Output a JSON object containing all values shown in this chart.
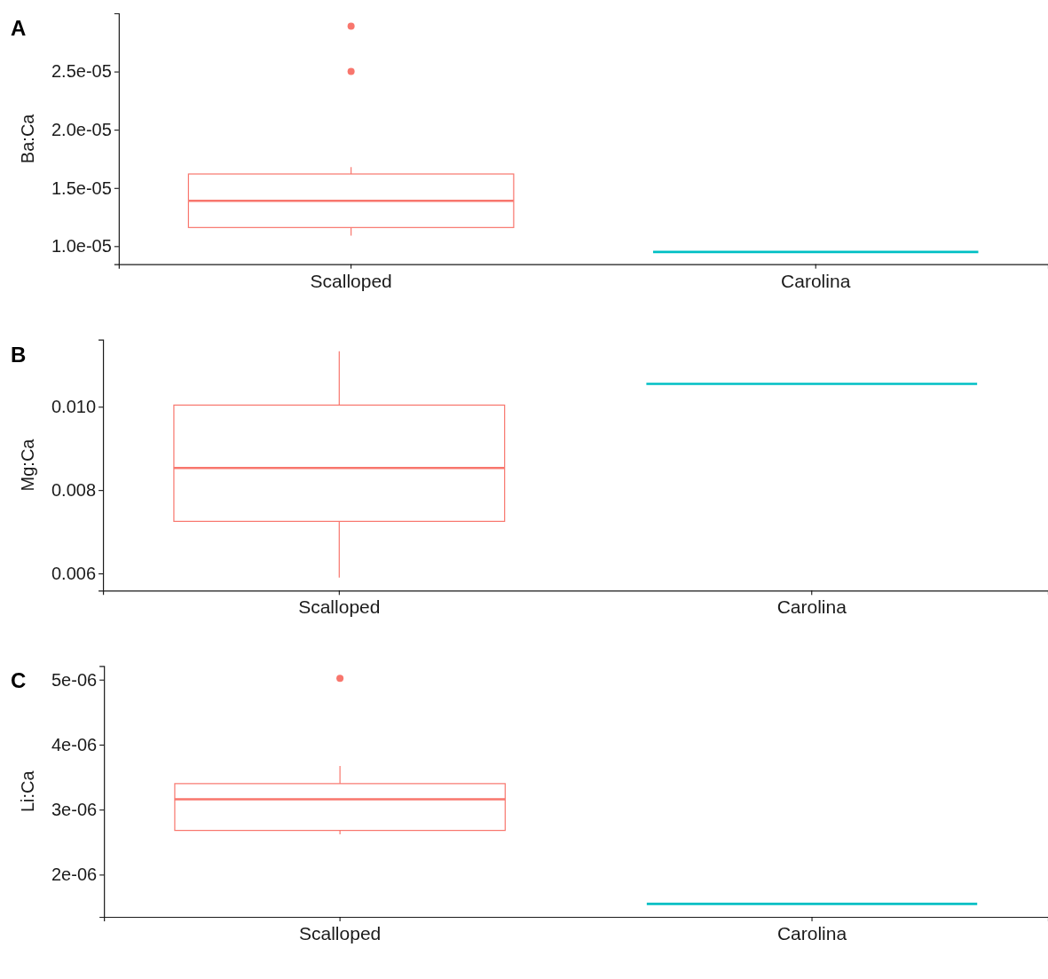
{
  "chart_data": [
    {
      "type": "box",
      "title": "A",
      "ylabel": "Ba:Ca",
      "categories": [
        "Scalloped",
        "Carolina"
      ],
      "colors": [
        "#f8766d",
        "#00bfc4"
      ],
      "boxes": [
        {
          "low": 1.09e-05,
          "q1": 1.16e-05,
          "median": 1.39e-05,
          "q3": 1.62e-05,
          "high": 1.68e-05,
          "outliers": [
            2.89e-05,
            2.5e-05
          ]
        },
        {
          "low": 9.5e-06,
          "q1": 9.5e-06,
          "median": 9.5e-06,
          "q3": 9.5e-06,
          "high": 9.5e-06
        }
      ],
      "ylim": [
        8.45e-06,
        3e-05
      ],
      "yticks": [
        {
          "value": 1e-05,
          "label": "1.0e-05"
        },
        {
          "value": 1.5e-05,
          "label": "1.5e-05"
        },
        {
          "value": 2e-05,
          "label": "2.0e-05"
        },
        {
          "value": 2.5e-05,
          "label": "2.5e-05"
        }
      ],
      "grid": false,
      "legend": false
    },
    {
      "type": "box",
      "title": "B",
      "ylabel": "Mg:Ca",
      "categories": [
        "Scalloped",
        "Carolina"
      ],
      "colors": [
        "#f8766d",
        "#00bfc4"
      ],
      "boxes": [
        {
          "low": 0.0059,
          "q1": 0.00725,
          "median": 0.00853,
          "q3": 0.01004,
          "high": 0.01133
        },
        {
          "low": 0.01055,
          "q1": 0.01055,
          "median": 0.01055,
          "q3": 0.01055,
          "high": 0.01055
        }
      ],
      "ylim": [
        0.00559,
        0.01161
      ],
      "yticks": [
        {
          "value": 0.006,
          "label": "0.006"
        },
        {
          "value": 0.008,
          "label": "0.008"
        },
        {
          "value": 0.01,
          "label": "0.010"
        }
      ],
      "grid": false,
      "legend": false
    },
    {
      "type": "box",
      "title": "C",
      "ylabel": "Li:Ca",
      "categories": [
        "Scalloped",
        "Carolina"
      ],
      "colors": [
        "#f8766d",
        "#00bfc4"
      ],
      "boxes": [
        {
          "low": 2.62e-06,
          "q1": 2.68e-06,
          "median": 3.16e-06,
          "q3": 3.4e-06,
          "high": 3.67e-06,
          "outliers": [
            5.02e-06
          ]
        },
        {
          "low": 1.55e-06,
          "q1": 1.55e-06,
          "median": 1.55e-06,
          "q3": 1.55e-06,
          "high": 1.55e-06
        }
      ],
      "ylim": [
        1.35e-06,
        5.21e-06
      ],
      "yticks": [
        {
          "value": 2e-06,
          "label": "2e-06"
        },
        {
          "value": 3e-06,
          "label": "3e-06"
        },
        {
          "value": 4e-06,
          "label": "4e-06"
        },
        {
          "value": 5e-06,
          "label": "5e-06"
        }
      ],
      "grid": false,
      "legend": false
    }
  ]
}
